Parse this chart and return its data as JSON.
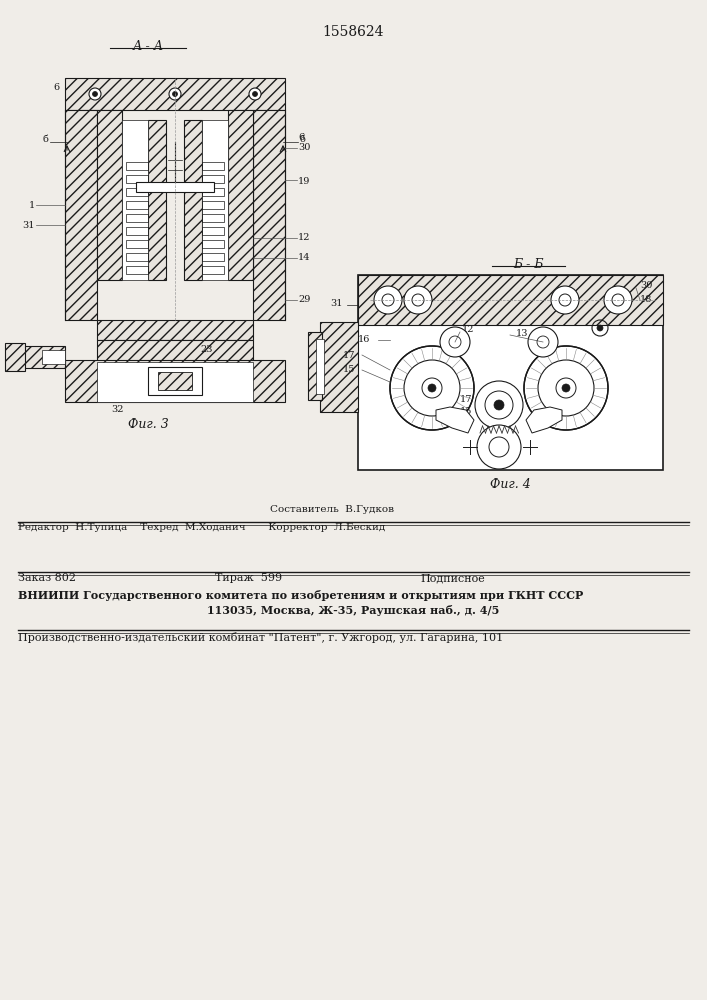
{
  "patent_number": "1558624",
  "fig3_label": "А - А",
  "fig3_caption": "Фиг. 3",
  "fig4_label": "Б - Б",
  "fig4_caption": "Фиг. 4",
  "bg_color": "#f0ede8",
  "line_color": "#1a1a1a",
  "footer_sestavitel": "Составитель  В.Гудков",
  "footer_editor": "Редактор  Н.Тупица    Техред  М.Ходанич       Корректор  Л.Бескид",
  "footer_zakaz": "Заказ 802",
  "footer_tirazh": "Тираж  599",
  "footer_podpisnoe": "Подписное",
  "footer_vniipi": "ВНИИПИ Государственного комитета по изобретениям и открытиям при ГКНТ СССР",
  "footer_address": "113035, Москва, Ж-35, Раушская наб., д. 4/5",
  "footer_patent": "Производственно-издательский комбинат \"Патент\", г. Ужгород, ул. Гагарина, 101"
}
